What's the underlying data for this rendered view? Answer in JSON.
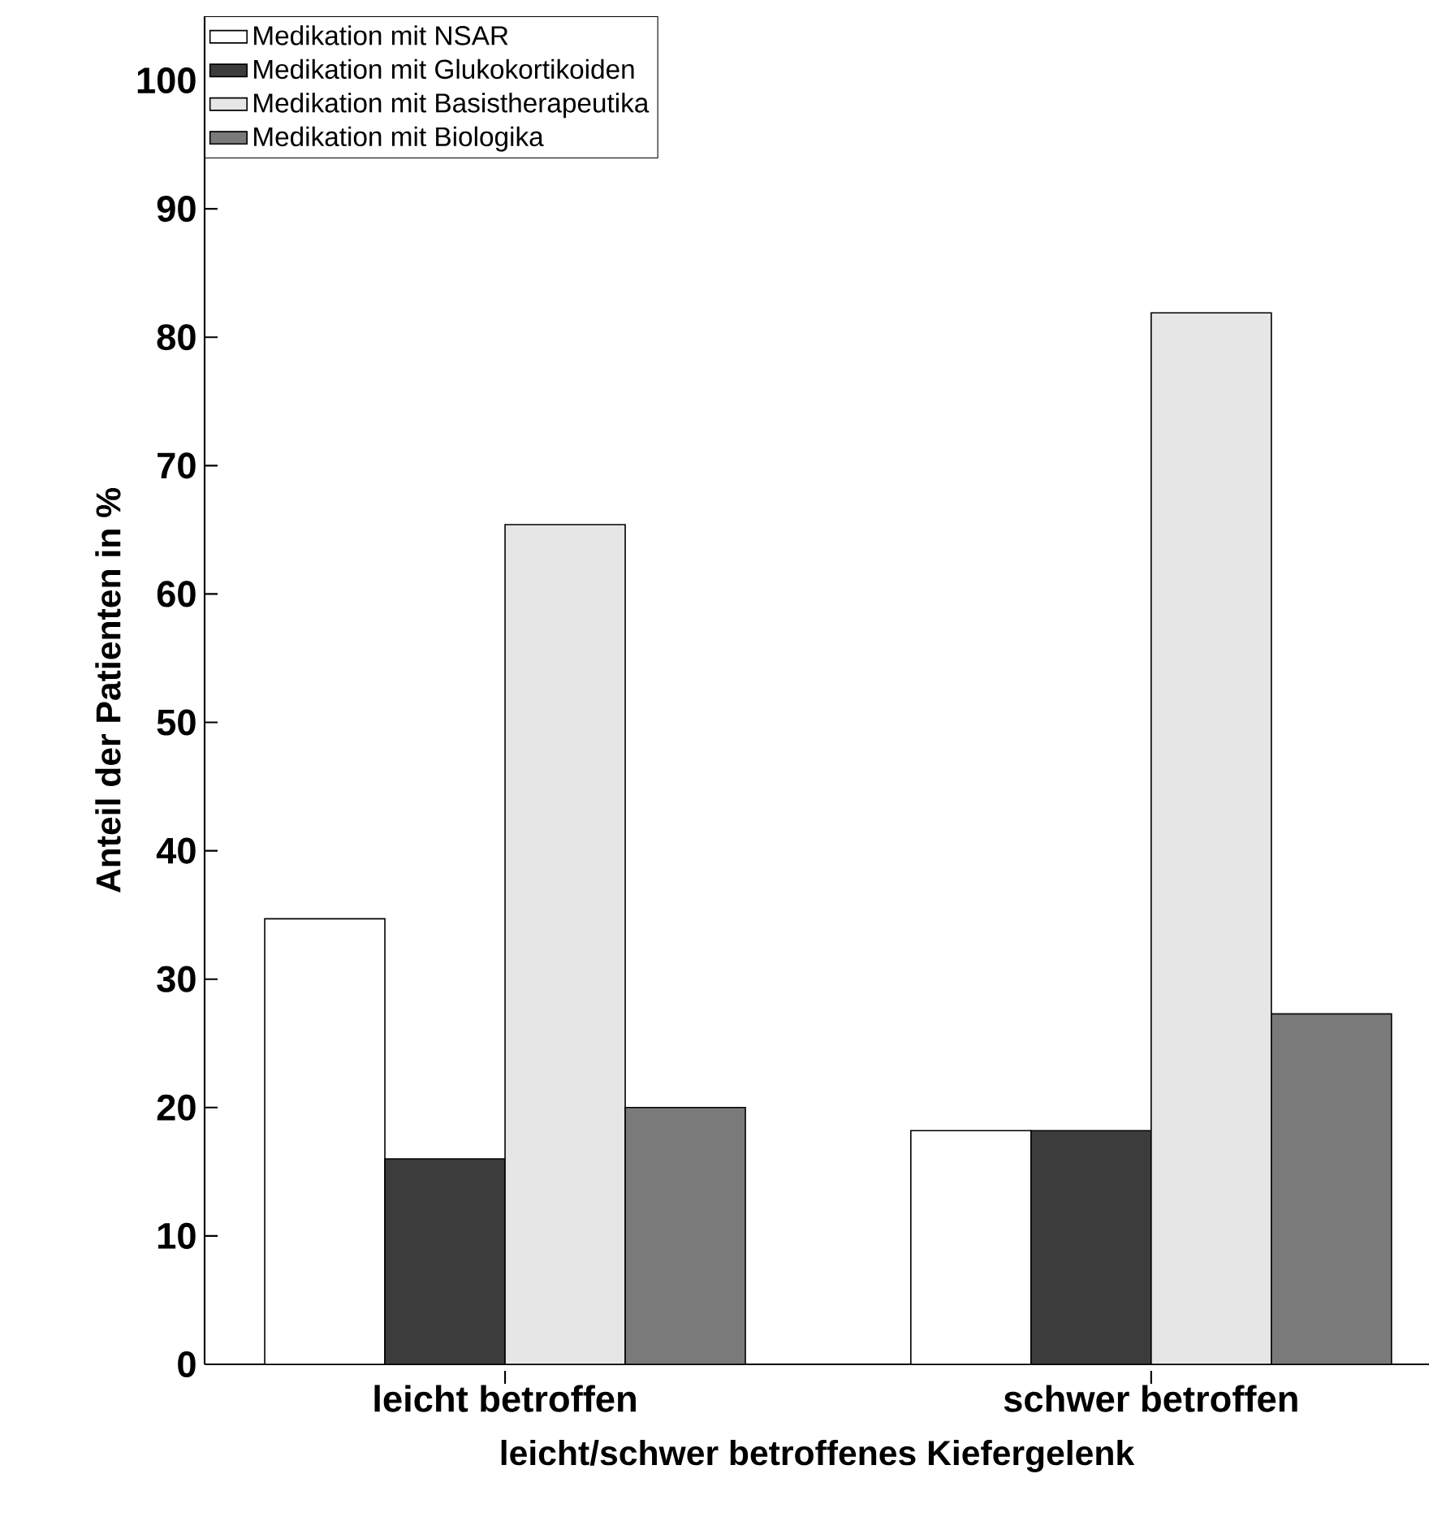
{
  "chart_data": {
    "type": "bar",
    "xlabel": "leicht/schwer betroffenes Kiefergelenk",
    "ylabel": "Anteil der Patienten in %",
    "categories": [
      "leicht betroffen",
      "schwer betroffen"
    ],
    "series": [
      {
        "name": "Medikation mit NSAR",
        "color": "#ffffff",
        "values": [
          34.7,
          18.2
        ]
      },
      {
        "name": "Medikation mit Glukokortikoiden",
        "color": "#3c3c3c",
        "values": [
          16.0,
          18.2
        ]
      },
      {
        "name": "Medikation mit Basistherapeutika",
        "color": "#e6e6e6",
        "values": [
          65.4,
          81.9
        ]
      },
      {
        "name": "Medikation mit Biologika",
        "color": "#7a7a7a",
        "values": [
          20.0,
          27.3
        ]
      }
    ],
    "ylim": [
      0,
      105
    ],
    "yticks": [
      0,
      10,
      20,
      30,
      40,
      50,
      60,
      70,
      80,
      90,
      100
    ],
    "grid": false,
    "legend": "top left"
  }
}
